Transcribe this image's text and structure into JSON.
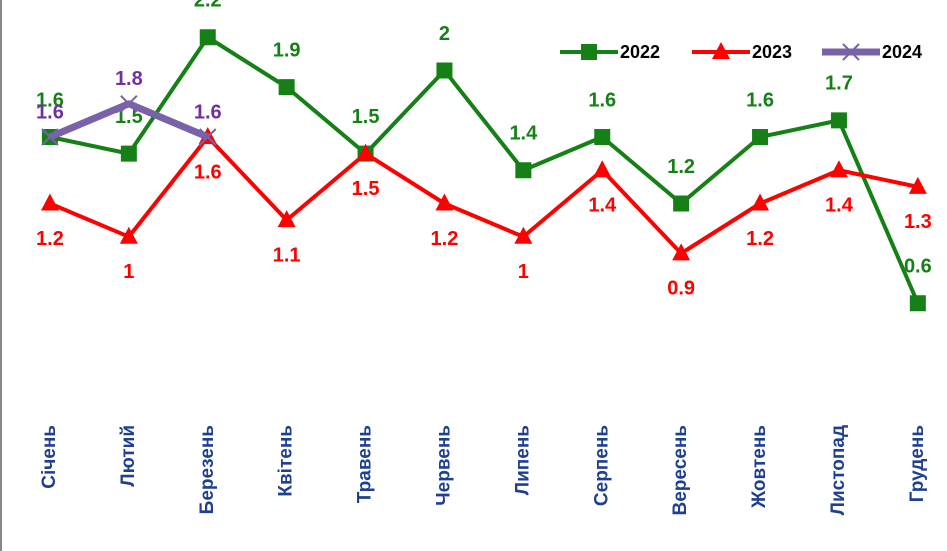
{
  "chart_data": {
    "type": "line",
    "categories": [
      "Січень",
      "Лютий",
      "Березень",
      "Квітень",
      "Травень",
      "Червень",
      "Липень",
      "Серпень",
      "Вересень",
      "Жовтень",
      "Листопад",
      "Грудень"
    ],
    "series": [
      {
        "name": "2022",
        "color": "#158015",
        "marker": "square",
        "values": [
          1.6,
          1.5,
          2.2,
          1.9,
          1.5,
          2.0,
          1.4,
          1.6,
          1.2,
          1.6,
          1.7,
          0.6
        ]
      },
      {
        "name": "2023",
        "color": "#ff0000",
        "marker": "triangle",
        "values": [
          1.2,
          1.0,
          1.6,
          1.1,
          1.5,
          1.2,
          1.0,
          1.4,
          0.9,
          1.2,
          1.4,
          1.3
        ]
      },
      {
        "name": "2024",
        "color": "#7a62a8",
        "marker": "x",
        "values": [
          1.6,
          1.8,
          1.6,
          null,
          null,
          null,
          null,
          null,
          null,
          null,
          null,
          null
        ]
      }
    ],
    "ylim": [
      0,
      2.4
    ],
    "legend": "top-right"
  }
}
